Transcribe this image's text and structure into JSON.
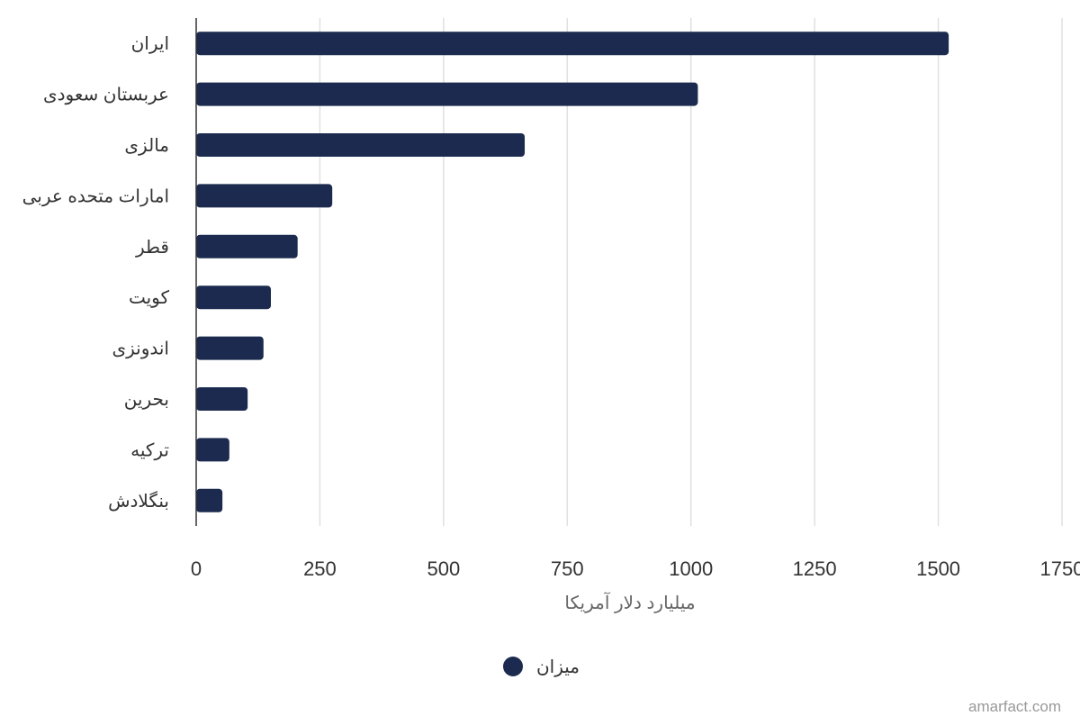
{
  "chart_data": {
    "type": "bar",
    "orientation": "horizontal",
    "categories": [
      "ایران",
      "عربستان سعودی",
      "مالزی",
      "امارات متحده عربی",
      "قطر",
      "کویت",
      "اندونزی",
      "بحرین",
      "ترکیه",
      "بنگلادش"
    ],
    "series": [
      {
        "name": "میزان",
        "color": "#1b2a4e",
        "values": [
          1521,
          1014,
          664,
          275,
          205,
          151,
          136,
          104,
          67,
          53
        ]
      }
    ],
    "xlabel": "میلیارد دلار آمریکا",
    "ylabel": "",
    "xlim": [
      0,
      1750
    ],
    "xticks": [
      "0",
      "250",
      "500",
      "750",
      "1000",
      "1250",
      "1500",
      "1750"
    ],
    "grid": true,
    "legend_position": "bottom-center"
  },
  "credit": "amarfact.com"
}
